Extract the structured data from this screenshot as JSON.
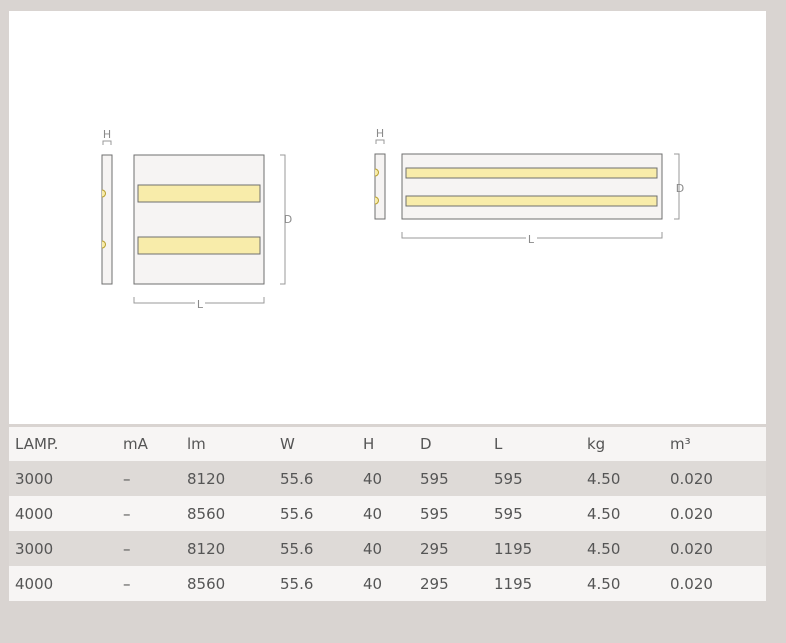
{
  "drawing": {
    "dimension_labels": {
      "height": "H",
      "depth": "D",
      "length": "L"
    },
    "lamp_color": "#f8ecaa",
    "outline_color": "#6f6f6f"
  },
  "table": {
    "headers": [
      "LAMP.",
      "mA",
      "lm",
      "W",
      "H",
      "D",
      "L",
      "kg",
      "m³"
    ],
    "rows": [
      [
        "3000",
        "–",
        "8120",
        "55.6",
        "40",
        "595",
        "595",
        "4.50",
        "0.020"
      ],
      [
        "4000",
        "–",
        "8560",
        "55.6",
        "40",
        "595",
        "595",
        "4.50",
        "0.020"
      ],
      [
        "3000",
        "–",
        "8120",
        "55.6",
        "40",
        "295",
        "1195",
        "4.50",
        "0.020"
      ],
      [
        "4000",
        "–",
        "8560",
        "55.6",
        "40",
        "295",
        "1195",
        "4.50",
        "0.020"
      ]
    ]
  }
}
